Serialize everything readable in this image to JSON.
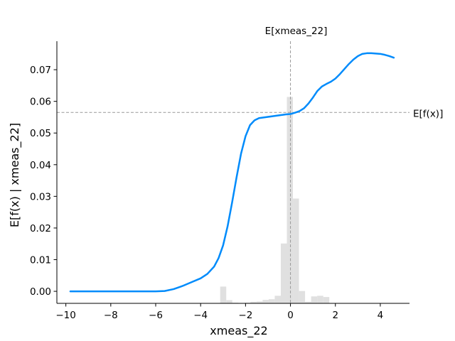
{
  "chart_data": {
    "type": "line",
    "xlabel": "xmeas_22",
    "ylabel": "E[f(x) | xmeas_22]",
    "xlim": [
      -10.4,
      5.3
    ],
    "ylim": [
      -0.0038,
      0.079
    ],
    "xticks": [
      -10,
      -8,
      -6,
      -4,
      -2,
      0,
      2,
      4
    ],
    "xtick_labels": [
      "−10",
      "−8",
      "−6",
      "−4",
      "−2",
      "0",
      "2",
      "4"
    ],
    "yticks": [
      0.0,
      0.01,
      0.02,
      0.03,
      0.04,
      0.05,
      0.06,
      0.07
    ],
    "ytick_labels": [
      "0.00",
      "0.01",
      "0.02",
      "0.03",
      "0.04",
      "0.05",
      "0.06",
      "0.07"
    ],
    "line_color": "#008bfb",
    "hist_color": "#e0e0e0",
    "ref_line_color": "#999999",
    "grid": false,
    "series": [
      {
        "x": [
          -9.8,
          -9.0,
          -8.0,
          -7.0,
          -6.0,
          -5.6,
          -5.2,
          -4.8,
          -4.4,
          -4.0,
          -3.7,
          -3.4,
          -3.2,
          -3.0,
          -2.8,
          -2.6,
          -2.4,
          -2.2,
          -2.0,
          -1.8,
          -1.6,
          -1.4,
          -1.2,
          -1.0,
          -0.8,
          -0.6,
          -0.4,
          -0.2,
          0.0,
          0.2,
          0.4,
          0.6,
          0.8,
          1.0,
          1.2,
          1.4,
          1.6,
          1.8,
          2.0,
          2.2,
          2.4,
          2.6,
          2.8,
          3.0,
          3.2,
          3.4,
          3.6,
          3.8,
          4.0,
          4.2,
          4.4,
          4.6
        ],
        "y": [
          0.0,
          0.0,
          0.0,
          0.0,
          0.0,
          0.0001,
          0.0007,
          0.0017,
          0.0029,
          0.0041,
          0.0055,
          0.0078,
          0.0105,
          0.0145,
          0.0205,
          0.028,
          0.036,
          0.0435,
          0.049,
          0.0525,
          0.054,
          0.0547,
          0.0549,
          0.0551,
          0.0553,
          0.0555,
          0.0557,
          0.0559,
          0.056,
          0.0564,
          0.0569,
          0.0578,
          0.0593,
          0.0612,
          0.0633,
          0.0647,
          0.0655,
          0.0662,
          0.0672,
          0.0686,
          0.0702,
          0.0718,
          0.0732,
          0.0743,
          0.075,
          0.0752,
          0.0752,
          0.0751,
          0.075,
          0.0747,
          0.0743,
          0.0738
        ]
      }
    ],
    "histogram": {
      "bin_edges": [
        -3.13,
        -2.86,
        -2.59,
        -2.32,
        -2.05,
        -1.78,
        -1.51,
        -1.24,
        -0.97,
        -0.7,
        -0.43,
        -0.16,
        0.11,
        0.38,
        0.65,
        0.92,
        1.19,
        1.46,
        1.73
      ],
      "heights": [
        0.0053,
        0.001,
        0.0002,
        0.0001,
        0.0002,
        0.0005,
        0.0006,
        0.0011,
        0.0013,
        0.0024,
        0.0189,
        0.0652,
        0.0331,
        0.0039,
        0.0005,
        0.0022,
        0.0024,
        0.002
      ]
    },
    "expected_x": 0.0,
    "expected_x_label": "E[xmeas_22]",
    "expected_fx": 0.0565,
    "expected_fx_label": "E[f(x)]"
  }
}
